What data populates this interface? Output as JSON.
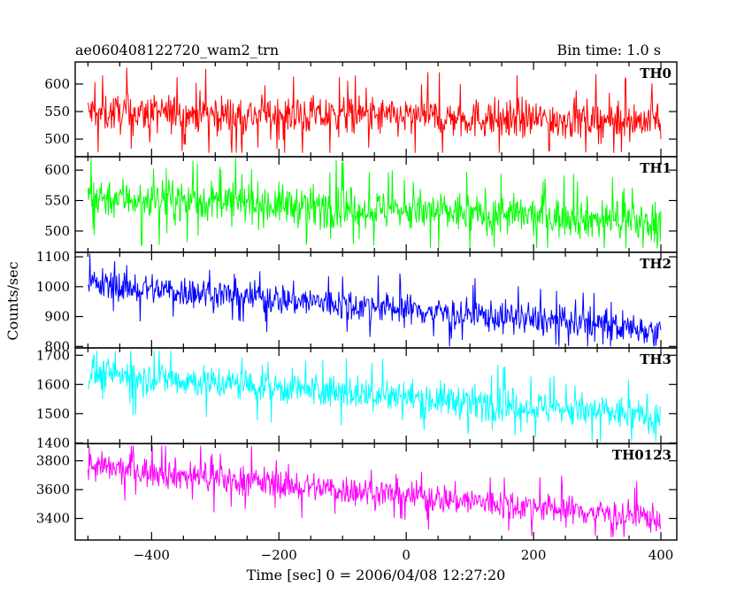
{
  "chart_data": {
    "type": "line",
    "title": "ae060408122720_wam2_trn",
    "subtitle": "Bin time: 1.0 s",
    "xlabel": "Time [sec] 0 = 2006/04/08 12:27:20",
    "ylabel": "Counts/sec",
    "xlim": [
      -520,
      425
    ],
    "xticks": [
      -400,
      -200,
      0,
      200,
      400
    ],
    "x_range": [
      -500,
      400
    ],
    "bin_time": 1.0,
    "panels": [
      {
        "name": "TH0",
        "color": "#ff0000",
        "ylim": [
          468,
          640
        ],
        "yticks": [
          500,
          550,
          600
        ],
        "start": 548,
        "end": 533,
        "noise": 32,
        "spike_max": 640,
        "spike_min": 475
      },
      {
        "name": "TH1",
        "color": "#00ff00",
        "ylim": [
          465,
          622
        ],
        "yticks": [
          500,
          550,
          600
        ],
        "start": 557,
        "end": 515,
        "noise": 30,
        "spike_max": 620,
        "spike_min": 472
      },
      {
        "name": "TH2",
        "color": "#0000ff",
        "ylim": [
          795,
          1115
        ],
        "yticks": [
          800,
          900,
          1000,
          1100
        ],
        "start": 1010,
        "end": 855,
        "noise": 48,
        "spike_max": 1110,
        "spike_min": 800
      },
      {
        "name": "TH3",
        "color": "#00ffff",
        "ylim": [
          1398,
          1725
        ],
        "yticks": [
          1400,
          1500,
          1600,
          1700
        ],
        "start": 1640,
        "end": 1490,
        "noise": 52,
        "spike_max": 1715,
        "spike_min": 1405
      },
      {
        "name": "TH0123",
        "color": "#ff00ff",
        "ylim": [
          3250,
          3920
        ],
        "yticks": [
          3400,
          3600,
          3800
        ],
        "start": 3760,
        "end": 3400,
        "noise": 95,
        "spike_max": 3905,
        "spike_min": 3270
      }
    ]
  }
}
